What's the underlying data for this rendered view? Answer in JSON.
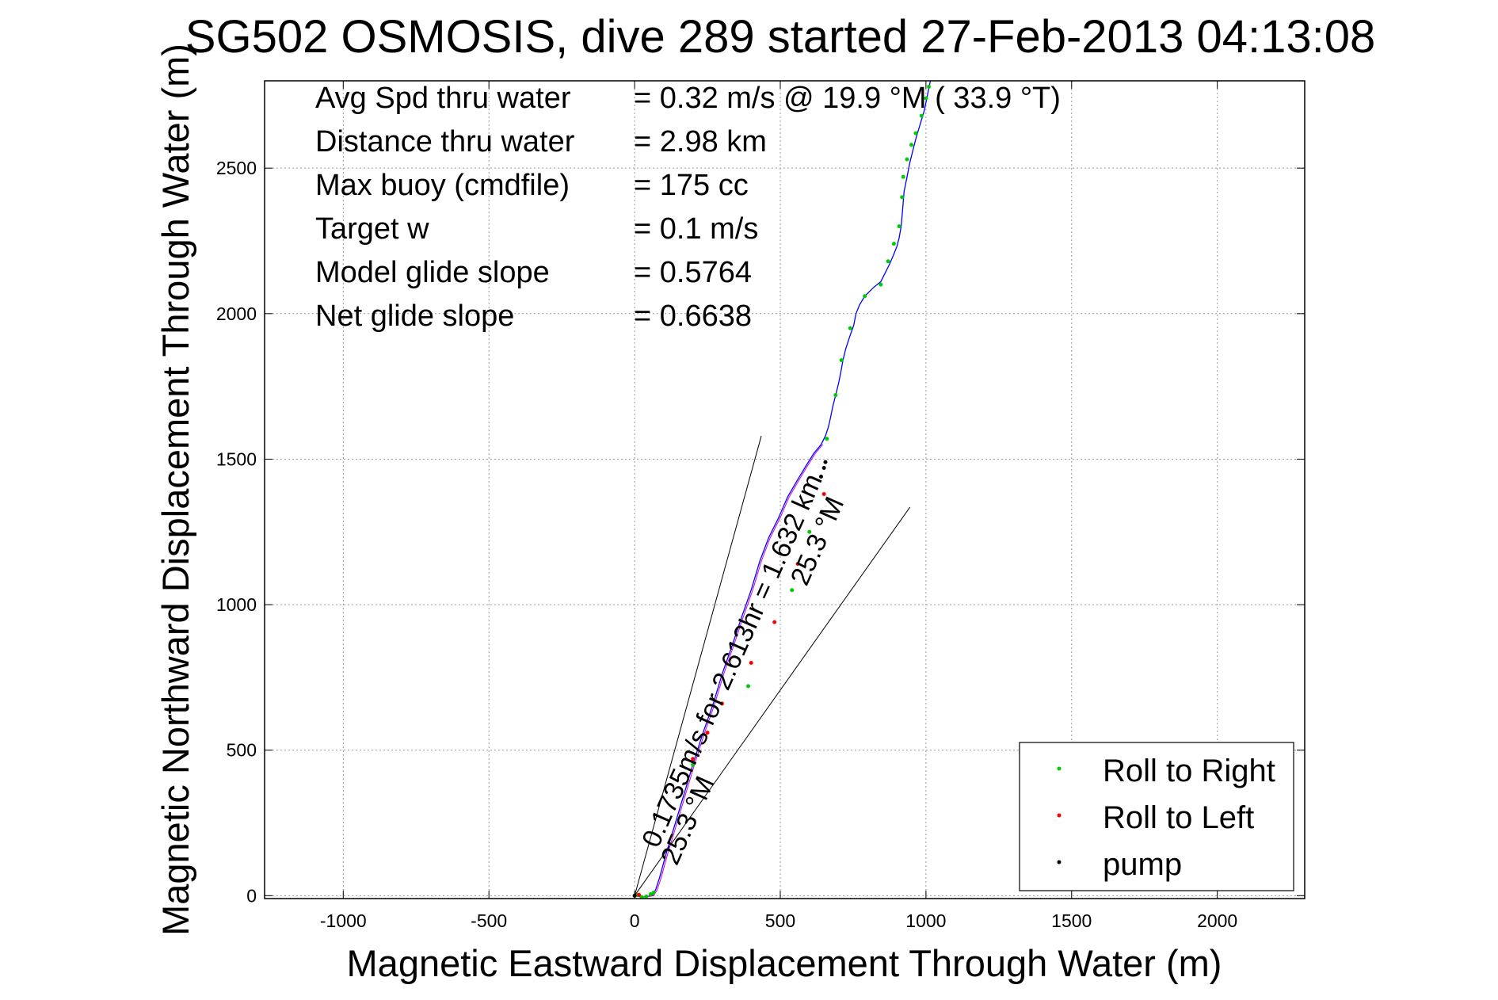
{
  "chart_data": {
    "type": "scatter",
    "title": "SG502 OSMOSIS, dive 289 started 27-Feb-2013 04:13:08",
    "xlabel": "Magnetic Eastward Displacement Through Water (m)",
    "ylabel": "Magnetic Northward Displacement Through Water (m)",
    "xlim": [
      -1270,
      2300
    ],
    "ylim": [
      -10,
      2800
    ],
    "xticks": [
      -1000,
      -500,
      0,
      500,
      1000,
      1500,
      2000
    ],
    "xtick_labels": [
      "-1000",
      "-500",
      "0",
      "500",
      "1000",
      "1500",
      "2000"
    ],
    "yticks": [
      0,
      500,
      1000,
      1500,
      2000,
      2500
    ],
    "ytick_labels": [
      "0",
      "500",
      "1000",
      "1500",
      "2000",
      "2500"
    ],
    "grid": true,
    "legend_position": "bottom-right",
    "stats": [
      {
        "label": "Avg Spd thru water",
        "value": "=  0.32 m/s @  19.9 °M ( 33.9 °T)"
      },
      {
        "label": "Distance thru water",
        "value": "=  2.98 km"
      },
      {
        "label": "Max buoy (cmdfile)",
        "value": "= 175 cc"
      },
      {
        "label": "Target w",
        "value": "= 0.1 m/s"
      },
      {
        "label": "Model glide slope",
        "value": "= 0.5764"
      },
      {
        "label": "Net glide slope",
        "value": "= 0.6638"
      }
    ],
    "annotations": [
      {
        "text": "0.1735m/s for 2.613hr = 1.632 km",
        "x": 80,
        "y": 160,
        "angle_deg": -66
      },
      {
        "text": "25.3 °M",
        "x": 145,
        "y": 100,
        "angle_deg": -66
      },
      {
        "text": "25.3 °M",
        "x": 590,
        "y": 1060,
        "angle_deg": -66
      }
    ],
    "current_lines": [
      {
        "x": [
          0,
          435
        ],
        "y": [
          0,
          1580
        ]
      },
      {
        "x": [
          0,
          945
        ],
        "y": [
          0,
          1335
        ]
      }
    ],
    "track_path": {
      "x": [
        0,
        25,
        45,
        60,
        72,
        85,
        110,
        140,
        170,
        200,
        235,
        270,
        300,
        335,
        365,
        400,
        430,
        460,
        495,
        525,
        560,
        590,
        615,
        640,
        655,
        665,
        672,
        680,
        690,
        700,
        708,
        715,
        725,
        738,
        752,
        760,
        772,
        790,
        820,
        845,
        860,
        875,
        888,
        900,
        908,
        915,
        920,
        925,
        935,
        945,
        955,
        965,
        980,
        995,
        1005,
        1015
      ],
      "y": [
        0,
        -5,
        -3,
        0,
        20,
        60,
        150,
        250,
        350,
        450,
        560,
        660,
        760,
        860,
        950,
        1050,
        1150,
        1230,
        1300,
        1370,
        1430,
        1480,
        1520,
        1550,
        1580,
        1610,
        1640,
        1680,
        1720,
        1760,
        1800,
        1840,
        1880,
        1920,
        1960,
        2000,
        2030,
        2060,
        2090,
        2110,
        2140,
        2170,
        2200,
        2230,
        2260,
        2300,
        2360,
        2420,
        2470,
        2520,
        2560,
        2600,
        2650,
        2700,
        2750,
        2800
      ]
    },
    "series": [
      {
        "name": "Roll to Right",
        "color": "#00cc00",
        "x": [
          10,
          25,
          40,
          55,
          65,
          200,
          390,
          540,
          600,
          660,
          690,
          710,
          740,
          790,
          845,
          870,
          890,
          908,
          918,
          922,
          935,
          950,
          965,
          985,
          1000,
          1010
        ],
        "y": [
          2,
          -5,
          -3,
          5,
          10,
          450,
          720,
          1050,
          1250,
          1570,
          1720,
          1840,
          1950,
          2060,
          2100,
          2180,
          2240,
          2300,
          2400,
          2470,
          2530,
          2580,
          2620,
          2680,
          2740,
          2780
        ]
      },
      {
        "name": "Roll to Left",
        "color": "#ff0000",
        "x": [
          15,
          200,
          250,
          300,
          400,
          480,
          560,
          650
        ],
        "y": [
          3,
          470,
          560,
          660,
          800,
          940,
          1140,
          1380
        ]
      },
      {
        "name": "pump",
        "color": "#000000",
        "x": [
          0,
          640,
          650,
          655
        ],
        "y": [
          0,
          1440,
          1470,
          1490
        ]
      }
    ]
  }
}
